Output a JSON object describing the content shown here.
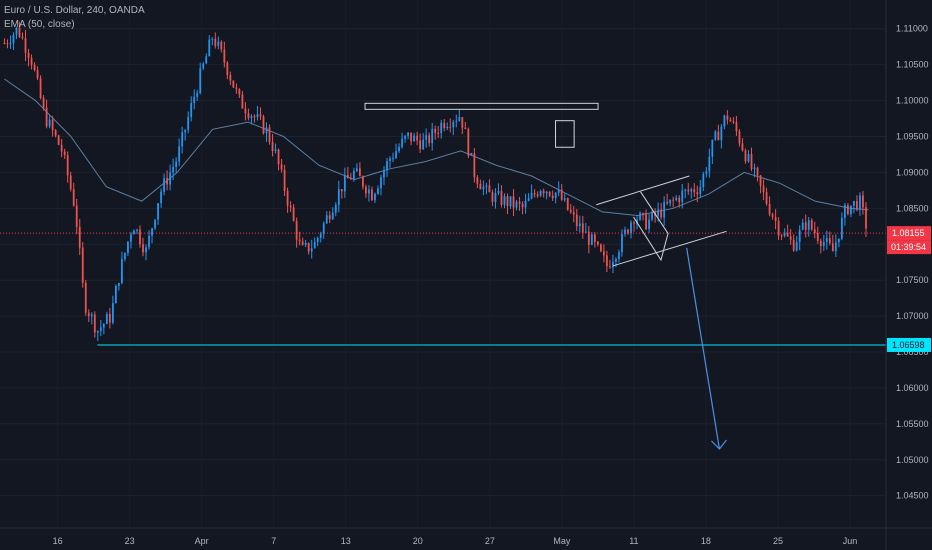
{
  "legend": {
    "symbol_line": "Euro / U.S. Dollar, 240, OANDA",
    "ema_line": "EMA (50, close)"
  },
  "price_tag": {
    "price": "1.08155",
    "countdown": "01:39:54",
    "color": "#f23645"
  },
  "support_tag": {
    "price": "1.06598",
    "color": "#00e5ff"
  },
  "colors": {
    "background": "#131722",
    "up": "#2196f3",
    "down": "#ef5350",
    "ema": "#5b7fa3",
    "drawing": "#d1d4dc",
    "arrow": "#4a90e2"
  },
  "chart_data": {
    "type": "candlestick",
    "title": "Euro / U.S. Dollar, 240, OANDA",
    "indicator": "EMA (50, close)",
    "y_ticks": [
      "1.11000",
      "1.10500",
      "1.10000",
      "1.09500",
      "1.09000",
      "1.08500",
      "1.08000",
      "1.07500",
      "1.07000",
      "1.06500",
      "1.06000",
      "1.05500",
      "1.05000",
      "1.04500"
    ],
    "x_ticks": [
      "16",
      "23",
      "Apr",
      "7",
      "13",
      "20",
      "27",
      "May",
      "11",
      "18",
      "25",
      "Jun"
    ],
    "ylim": [
      1.0405,
      1.114
    ],
    "current_price": 1.08155,
    "support_level": 1.06598,
    "resistance_level": 1.0992,
    "price_path": [
      [
        0.5,
        1.108
      ],
      [
        2,
        1.11
      ],
      [
        3.5,
        1.106
      ],
      [
        5,
        1.098
      ],
      [
        7,
        1.093
      ],
      [
        8.5,
        1.085
      ],
      [
        9.5,
        1.072
      ],
      [
        11,
        1.068
      ],
      [
        12.5,
        1.07
      ],
      [
        13.5,
        1.076
      ],
      [
        15,
        1.083
      ],
      [
        16.5,
        1.079
      ],
      [
        18,
        1.087
      ],
      [
        20,
        1.092
      ],
      [
        22,
        1.101
      ],
      [
        24,
        1.109
      ],
      [
        25.5,
        1.105
      ],
      [
        27,
        1.1
      ],
      [
        28.5,
        1.098
      ],
      [
        30,
        1.096
      ],
      [
        31,
        1.093
      ],
      [
        32.5,
        1.086
      ],
      [
        34,
        1.079
      ],
      [
        35.5,
        1.08
      ],
      [
        37,
        1.084
      ],
      [
        38.5,
        1.088
      ],
      [
        40,
        1.09
      ],
      [
        42,
        1.087
      ],
      [
        44,
        1.092
      ],
      [
        46,
        1.095
      ],
      [
        48,
        1.094
      ],
      [
        50,
        1.097
      ],
      [
        52,
        1.098
      ],
      [
        53.5,
        1.09
      ],
      [
        55,
        1.087
      ],
      [
        57,
        1.086
      ],
      [
        59,
        1.085
      ],
      [
        61,
        1.088
      ],
      [
        63,
        1.087
      ],
      [
        65,
        1.083
      ],
      [
        67,
        1.08
      ],
      [
        68.5,
        1.077
      ],
      [
        70,
        1.08
      ],
      [
        71.5,
        1.084
      ],
      [
        73,
        1.083
      ],
      [
        75,
        1.085
      ],
      [
        77,
        1.087
      ],
      [
        79,
        1.088
      ],
      [
        80.5,
        1.094
      ],
      [
        82,
        1.098
      ],
      [
        83,
        1.096
      ],
      [
        84,
        1.093
      ],
      [
        85,
        1.09
      ],
      [
        86.5,
        1.086
      ],
      [
        88,
        1.082
      ],
      [
        89.5,
        1.08
      ],
      [
        91,
        1.083
      ],
      [
        92.5,
        1.081
      ],
      [
        94,
        1.079
      ],
      [
        95.5,
        1.085
      ],
      [
        97,
        1.086
      ],
      [
        98,
        1.0816
      ]
    ],
    "ema_path": [
      [
        0.5,
        1.103
      ],
      [
        4,
        1.1
      ],
      [
        8,
        1.095
      ],
      [
        12,
        1.088
      ],
      [
        16,
        1.086
      ],
      [
        20,
        1.09
      ],
      [
        24,
        1.096
      ],
      [
        28,
        1.097
      ],
      [
        32,
        1.095
      ],
      [
        36,
        1.091
      ],
      [
        40,
        1.089
      ],
      [
        44,
        1.0905
      ],
      [
        48,
        1.0915
      ],
      [
        52,
        1.093
      ],
      [
        56,
        1.091
      ],
      [
        60,
        1.0895
      ],
      [
        64,
        1.087
      ],
      [
        68,
        1.0845
      ],
      [
        72,
        1.084
      ],
      [
        76,
        1.085
      ],
      [
        80,
        1.087
      ],
      [
        84,
        1.09
      ],
      [
        88,
        1.0885
      ],
      [
        92,
        1.086
      ],
      [
        96,
        1.085
      ],
      [
        98,
        1.0848
      ]
    ]
  }
}
